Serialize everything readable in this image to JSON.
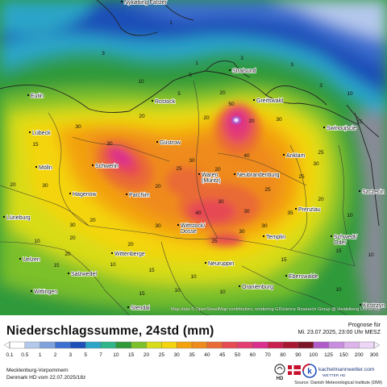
{
  "map": {
    "attribution": "Map data © OpenStreetMap contributors, rendering GIScience Research Group @ Heidelberg University",
    "cities": [
      {
        "name": "Nykøbing Falster"
      },
      {
        "name": "Stralsund"
      },
      {
        "name": "Greifswald"
      },
      {
        "name": "Rostock"
      },
      {
        "name": "Lübeck"
      },
      {
        "name": "Eutin"
      },
      {
        "name": "Güstrow"
      },
      {
        "name": "Anklam"
      },
      {
        "name": "Swinoujscie"
      },
      {
        "name": "Mölln"
      },
      {
        "name": "Schwerin"
      },
      {
        "name": "Waren (Müritz)"
      },
      {
        "name": "Neubrandenburg"
      },
      {
        "name": "Hagenow"
      },
      {
        "name": "Parchim"
      },
      {
        "name": "Szczecin"
      },
      {
        "name": "Prenzlau"
      },
      {
        "name": "Lüneburg"
      },
      {
        "name": "Wittstock/ Dosse"
      },
      {
        "name": "Templin"
      },
      {
        "name": "Schwedt/ Oder"
      },
      {
        "name": "Uelzen"
      },
      {
        "name": "Wittenberge"
      },
      {
        "name": "Neuruppin"
      },
      {
        "name": "Salzwedel"
      },
      {
        "name": "Eberswalde"
      },
      {
        "name": "Wittingen"
      },
      {
        "name": "Oranienburg"
      },
      {
        "name": "Stendal"
      },
      {
        "name": "Kostrzyn"
      }
    ],
    "values": [
      "1",
      "3",
      "1",
      "3",
      "3",
      "5",
      "10",
      "5",
      "3",
      "20",
      "10",
      "15",
      "30",
      "50",
      "20",
      "20",
      "30",
      "40",
      "20",
      "30",
      "25",
      "30",
      "25",
      "20",
      "20",
      "30",
      "30",
      "30",
      "35",
      "40",
      "30",
      "25",
      "20",
      "30",
      "20",
      "25",
      "30",
      "30",
      "20",
      "30",
      "20",
      "25",
      "20",
      "15",
      "10",
      "10",
      "20",
      "15",
      "15",
      "10",
      "10",
      "15",
      "10",
      "10",
      "15",
      "10",
      "15",
      "10"
    ]
  },
  "legend": {
    "title": "Niederschlagssumme, 24std (mm)",
    "forecast_label": "Prognose für",
    "forecast_time": "Mi. 23.07.2025, 23:00 Uhr MESZ",
    "region": "Mecklenburg-Vorpommern",
    "model": "Denmark HD vom 22.07.2025/18z",
    "source": "Source: Danish Meteorological Institute (DMI)",
    "logo_text_1": "kachelmannwetter.com",
    "logo_text_2": "WETTER HD",
    "hd_label": "HD",
    "k_label": "k",
    "scale": [
      {
        "label": "0.1",
        "color": "#ffffff"
      },
      {
        "label": "0.5",
        "color": "#b4c8ec"
      },
      {
        "label": "1",
        "color": "#7fa2dc"
      },
      {
        "label": "2",
        "color": "#3d6fd0"
      },
      {
        "label": "3",
        "color": "#1e4fb8"
      },
      {
        "label": "5",
        "color": "#2aa5c8"
      },
      {
        "label": "7",
        "color": "#2fb58a"
      },
      {
        "label": "10",
        "color": "#2f9a3a"
      },
      {
        "label": "15",
        "color": "#7cc02a"
      },
      {
        "label": "20",
        "color": "#d8dc18"
      },
      {
        "label": "25",
        "color": "#f4d40c"
      },
      {
        "label": "30",
        "color": "#f3a20d"
      },
      {
        "label": "35",
        "color": "#ef8a1c"
      },
      {
        "label": "40",
        "color": "#ea6a36"
      },
      {
        "label": "45",
        "color": "#e64a52"
      },
      {
        "label": "50",
        "color": "#e43e70"
      },
      {
        "label": "60",
        "color": "#db2f8e"
      },
      {
        "label": "70",
        "color": "#c91f4e"
      },
      {
        "label": "80",
        "color": "#a81830"
      },
      {
        "label": "90",
        "color": "#7d1528"
      },
      {
        "label": "100",
        "color": "#b05cc8"
      },
      {
        "label": "125",
        "color": "#c98de0"
      },
      {
        "label": "150",
        "color": "#ddb3ec"
      },
      {
        "label": "200",
        "color": "#eed6f6"
      },
      {
        "label": "300",
        "color": "#f8eefb"
      }
    ]
  }
}
